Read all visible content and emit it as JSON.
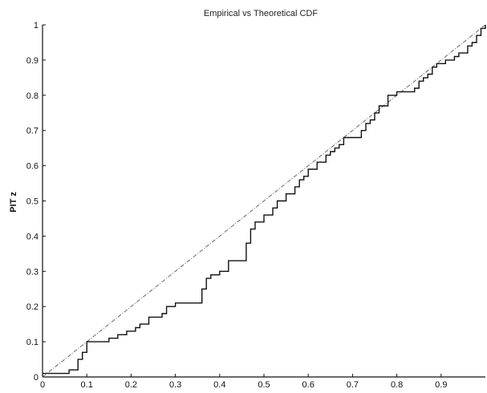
{
  "chart_data": {
    "type": "line",
    "title": "Empirical vs Theoretical CDF",
    "xlabel": "",
    "ylabel": "PIT z",
    "xlim": [
      0,
      1
    ],
    "ylim": [
      0,
      1
    ],
    "grid": false,
    "x_ticks": [
      "0",
      "0.1",
      "0.2",
      "0.3",
      "0.4",
      "0.5",
      "0.6",
      "0.7",
      "0.8",
      "0.9"
    ],
    "y_ticks": [
      "0",
      "0.1",
      "0.2",
      "0.3",
      "0.4",
      "0.5",
      "0.6",
      "0.7",
      "0.8",
      "0.9",
      "1"
    ],
    "series": [
      {
        "style": "step",
        "x": [
          0.0,
          0.06,
          0.08,
          0.09,
          0.1,
          0.15,
          0.17,
          0.19,
          0.21,
          0.22,
          0.24,
          0.27,
          0.28,
          0.3,
          0.36,
          0.37,
          0.38,
          0.4,
          0.42,
          0.46,
          0.47,
          0.48,
          0.5,
          0.52,
          0.53,
          0.55,
          0.57,
          0.58,
          0.59,
          0.6,
          0.62,
          0.64,
          0.65,
          0.66,
          0.67,
          0.68,
          0.72,
          0.73,
          0.74,
          0.75,
          0.76,
          0.78,
          0.8,
          0.84,
          0.85,
          0.86,
          0.87,
          0.88,
          0.89,
          0.91,
          0.93,
          0.94,
          0.96,
          0.97,
          0.98,
          0.99,
          1.0
        ],
        "y": [
          0.01,
          0.02,
          0.05,
          0.07,
          0.1,
          0.11,
          0.12,
          0.13,
          0.14,
          0.15,
          0.17,
          0.18,
          0.2,
          0.21,
          0.25,
          0.28,
          0.29,
          0.3,
          0.33,
          0.38,
          0.42,
          0.44,
          0.46,
          0.48,
          0.5,
          0.52,
          0.54,
          0.56,
          0.57,
          0.59,
          0.61,
          0.63,
          0.64,
          0.65,
          0.66,
          0.68,
          0.7,
          0.72,
          0.73,
          0.75,
          0.77,
          0.8,
          0.81,
          0.82,
          0.84,
          0.85,
          0.86,
          0.88,
          0.89,
          0.9,
          0.91,
          0.92,
          0.94,
          0.95,
          0.97,
          0.99,
          1.0
        ]
      },
      {
        "style": "dash-dot",
        "x": [
          0,
          1
        ],
        "y": [
          0,
          1
        ]
      }
    ]
  }
}
